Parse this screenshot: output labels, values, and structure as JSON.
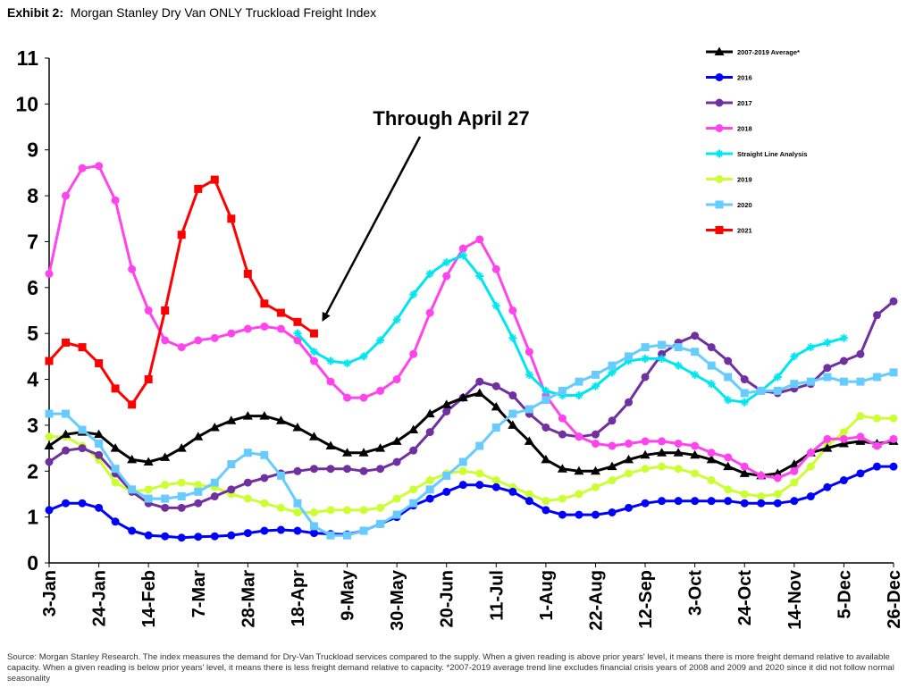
{
  "header": {
    "exhibit": "Exhibit 2:",
    "title": "Morgan Stanley Dry Van ONLY Truckload Freight Index"
  },
  "source_note": "Source: Morgan Stanley Research. The index measures the demand for Dry-Van Truckload services compared to the supply. When a given reading is above prior years' level, it means there is more freight demand relative to available capacity. When a given reading is below prior years' level, it means there is less freight demand relative to capacity. *2007-2019 average trend line excludes financial crisis years of 2008 and 2009 and 2020 since it did not follow normal seasonality",
  "chart_data": {
    "type": "line",
    "title": "",
    "xlabel": "",
    "ylabel": "",
    "ylim": [
      0,
      11
    ],
    "yticks": [
      0,
      1,
      2,
      3,
      4,
      5,
      6,
      7,
      8,
      9,
      10,
      11
    ],
    "xlim": [
      0,
      51
    ],
    "x_tick_positions": [
      0,
      3,
      6,
      9,
      12,
      15,
      18,
      21,
      24,
      27,
      30,
      33,
      36,
      39,
      42,
      45,
      48,
      51
    ],
    "x_tick_labels": [
      "3-Jan",
      "24-Jan",
      "14-Feb",
      "7-Mar",
      "28-Mar",
      "18-Apr",
      "9-May",
      "30-May",
      "20-Jun",
      "11-Jul",
      "1-Aug",
      "22-Aug",
      "12-Sep",
      "3-Oct",
      "24-Oct",
      "14-Nov",
      "5-Dec",
      "26-Dec"
    ],
    "grid": false,
    "legend_position": "top-right",
    "annotation": {
      "text": "Through April 27",
      "points_to": {
        "x": 16,
        "y": 5.0
      }
    },
    "series": [
      {
        "name": "2007-2019 Average*",
        "color": "#000000",
        "marker": "triangle",
        "start": 0,
        "values": [
          2.55,
          2.8,
          2.85,
          2.8,
          2.5,
          2.25,
          2.2,
          2.3,
          2.5,
          2.75,
          2.95,
          3.1,
          3.2,
          3.2,
          3.1,
          2.95,
          2.75,
          2.55,
          2.4,
          2.4,
          2.5,
          2.65,
          2.9,
          3.25,
          3.45,
          3.6,
          3.7,
          3.4,
          3.0,
          2.65,
          2.25,
          2.05,
          2.0,
          2.0,
          2.1,
          2.25,
          2.35,
          2.4,
          2.4,
          2.35,
          2.25,
          2.1,
          1.95,
          1.9,
          1.95,
          2.15,
          2.4,
          2.5,
          2.6,
          2.65,
          2.6,
          2.65
        ]
      },
      {
        "name": "2016",
        "color": "#0000ff",
        "marker": "circle",
        "start": 0,
        "values": [
          1.15,
          1.3,
          1.3,
          1.2,
          0.9,
          0.7,
          0.6,
          0.58,
          0.55,
          0.57,
          0.58,
          0.6,
          0.65,
          0.7,
          0.72,
          0.7,
          0.65,
          0.63,
          0.62,
          0.7,
          0.85,
          1.0,
          1.25,
          1.4,
          1.55,
          1.7,
          1.7,
          1.65,
          1.55,
          1.35,
          1.15,
          1.05,
          1.05,
          1.05,
          1.1,
          1.2,
          1.3,
          1.35,
          1.35,
          1.35,
          1.35,
          1.35,
          1.3,
          1.3,
          1.3,
          1.35,
          1.45,
          1.65,
          1.8,
          1.95,
          2.1,
          2.1
        ]
      },
      {
        "name": "2017",
        "color": "#7030a0",
        "marker": "circle",
        "start": 0,
        "values": [
          2.2,
          2.45,
          2.5,
          2.35,
          1.95,
          1.55,
          1.3,
          1.2,
          1.2,
          1.3,
          1.45,
          1.6,
          1.75,
          1.85,
          1.95,
          2.0,
          2.05,
          2.05,
          2.05,
          2.0,
          2.05,
          2.2,
          2.45,
          2.85,
          3.3,
          3.6,
          3.95,
          3.85,
          3.65,
          3.25,
          2.95,
          2.8,
          2.75,
          2.8,
          3.1,
          3.5,
          4.05,
          4.55,
          4.8,
          4.95,
          4.7,
          4.4,
          4.0,
          3.75,
          3.7,
          3.8,
          3.9,
          4.25,
          4.4,
          4.55,
          5.4,
          5.7
        ]
      },
      {
        "name": "2018",
        "color": "#ff44ee",
        "marker": "circle",
        "start": 0,
        "values": [
          6.3,
          8.0,
          8.6,
          8.65,
          7.9,
          6.4,
          5.5,
          4.85,
          4.7,
          4.85,
          4.9,
          5.0,
          5.1,
          5.15,
          5.1,
          4.85,
          4.4,
          3.95,
          3.6,
          3.6,
          3.75,
          4.0,
          4.55,
          5.45,
          6.25,
          6.85,
          7.05,
          6.4,
          5.5,
          4.6,
          3.65,
          3.15,
          2.75,
          2.6,
          2.55,
          2.6,
          2.65,
          2.65,
          2.6,
          2.55,
          2.4,
          2.3,
          2.1,
          1.9,
          1.85,
          2.0,
          2.4,
          2.7,
          2.7,
          2.75,
          2.55,
          2.7
        ]
      },
      {
        "name": "Straight Line Analysis",
        "color": "#00e6f0",
        "marker": "star",
        "start": 15,
        "values": [
          5.0,
          4.6,
          4.4,
          4.35,
          4.5,
          4.85,
          5.3,
          5.85,
          6.3,
          6.55,
          6.7,
          6.25,
          5.6,
          4.9,
          4.1,
          3.75,
          3.65,
          3.65,
          3.85,
          4.15,
          4.4,
          4.45,
          4.45,
          4.3,
          4.1,
          3.9,
          3.55,
          3.5,
          3.75,
          4.05,
          4.5,
          4.7,
          4.8,
          4.9
        ]
      },
      {
        "name": "2019",
        "color": "#ccff33",
        "marker": "circle",
        "start": 0,
        "values": [
          2.75,
          2.75,
          2.55,
          2.25,
          1.75,
          1.55,
          1.6,
          1.7,
          1.75,
          1.7,
          1.65,
          1.5,
          1.4,
          1.3,
          1.2,
          1.1,
          1.1,
          1.15,
          1.15,
          1.15,
          1.2,
          1.4,
          1.6,
          1.8,
          1.95,
          2.0,
          1.95,
          1.8,
          1.65,
          1.5,
          1.35,
          1.4,
          1.5,
          1.65,
          1.8,
          1.95,
          2.05,
          2.1,
          2.05,
          1.95,
          1.8,
          1.6,
          1.5,
          1.45,
          1.5,
          1.75,
          2.1,
          2.55,
          2.85,
          3.2,
          3.15,
          3.15
        ]
      },
      {
        "name": "2020",
        "color": "#66ccff",
        "marker": "square",
        "start": 0,
        "values": [
          3.25,
          3.25,
          2.9,
          2.6,
          2.05,
          1.6,
          1.4,
          1.4,
          1.45,
          1.55,
          1.75,
          2.15,
          2.4,
          2.35,
          1.9,
          1.3,
          0.8,
          0.6,
          0.6,
          0.7,
          0.85,
          1.05,
          1.3,
          1.6,
          1.9,
          2.2,
          2.55,
          2.95,
          3.25,
          3.35,
          3.55,
          3.75,
          3.95,
          4.1,
          4.3,
          4.5,
          4.7,
          4.75,
          4.7,
          4.6,
          4.3,
          4.05,
          3.7,
          3.75,
          3.75,
          3.9,
          3.95,
          4.05,
          3.95,
          3.95,
          4.05,
          4.15
        ]
      },
      {
        "name": "2021",
        "color": "#ff0000",
        "marker": "square",
        "start": 0,
        "values": [
          4.4,
          4.8,
          4.7,
          4.35,
          3.8,
          3.45,
          4.0,
          5.5,
          7.15,
          8.15,
          8.35,
          7.5,
          6.3,
          5.65,
          5.45,
          5.25,
          5.0
        ]
      }
    ]
  }
}
